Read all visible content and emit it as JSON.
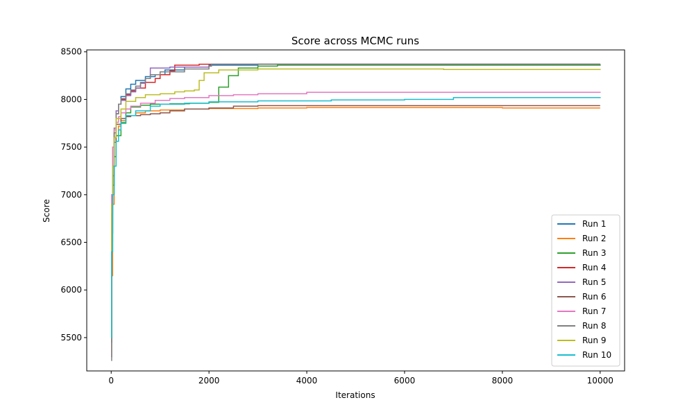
{
  "chart_data": {
    "type": "line",
    "title": "Score across MCMC runs",
    "xlabel": "Iterations",
    "ylabel": "Score",
    "xlim": [
      -500,
      10500
    ],
    "ylim": [
      5150,
      8520
    ],
    "x_ticks": [
      0,
      2000,
      4000,
      6000,
      8000,
      10000
    ],
    "y_ticks": [
      5500,
      6000,
      6500,
      7000,
      7500,
      8000,
      8500
    ],
    "grid": false,
    "legend_position": "lower-right",
    "series": [
      {
        "name": "Run 1",
        "color": "#1f77b4",
        "x": [
          0,
          10,
          30,
          60,
          100,
          150,
          200,
          300,
          400,
          500,
          700,
          900,
          1100,
          1500,
          2000,
          3000,
          5000,
          10000
        ],
        "y": [
          5450,
          6600,
          7200,
          7600,
          7850,
          7950,
          8030,
          8110,
          8160,
          8200,
          8240,
          8260,
          8310,
          8340,
          8360,
          8370,
          8370,
          8370
        ]
      },
      {
        "name": "Run 2",
        "color": "#ff7f0e",
        "x": [
          0,
          10,
          30,
          60,
          100,
          150,
          200,
          300,
          500,
          700,
          1000,
          1500,
          2000,
          3000,
          4000,
          6000,
          8000,
          10000
        ],
        "y": [
          5700,
          6150,
          6900,
          7400,
          7620,
          7720,
          7780,
          7830,
          7860,
          7880,
          7890,
          7900,
          7905,
          7910,
          7915,
          7915,
          7910,
          7910
        ]
      },
      {
        "name": "Run 3",
        "color": "#2ca02c",
        "x": [
          0,
          10,
          30,
          60,
          100,
          200,
          300,
          400,
          600,
          800,
          1200,
          1600,
          2000,
          2200,
          2400,
          2600,
          3000,
          3400,
          10000
        ],
        "y": [
          5500,
          6500,
          7100,
          7400,
          7620,
          7750,
          7860,
          7920,
          7940,
          7950,
          7955,
          7960,
          7970,
          8130,
          8250,
          8330,
          8350,
          8360,
          8370
        ]
      },
      {
        "name": "Run 4",
        "color": "#d62728",
        "x": [
          0,
          10,
          30,
          60,
          100,
          150,
          200,
          300,
          400,
          500,
          700,
          900,
          1000,
          1200,
          1300,
          1800,
          2000,
          10000
        ],
        "y": [
          5500,
          6800,
          7300,
          7650,
          7850,
          7950,
          8000,
          8050,
          8090,
          8120,
          8180,
          8220,
          8260,
          8300,
          8360,
          8370,
          8370,
          8370
        ]
      },
      {
        "name": "Run 5",
        "color": "#9467bd",
        "x": [
          0,
          10,
          30,
          60,
          100,
          150,
          200,
          300,
          400,
          500,
          600,
          700,
          800,
          1200,
          1800,
          2000,
          2050,
          10000
        ],
        "y": [
          5500,
          6700,
          7300,
          7700,
          7880,
          7950,
          7990,
          8040,
          8080,
          8120,
          8170,
          8220,
          8330,
          8340,
          8340,
          8350,
          8370,
          8370
        ]
      },
      {
        "name": "Run 6",
        "color": "#8c564b",
        "x": [
          0,
          10,
          30,
          60,
          100,
          200,
          300,
          400,
          600,
          800,
          1000,
          1200,
          1500,
          2000,
          2500,
          3000,
          10000
        ],
        "y": [
          5300,
          6600,
          7200,
          7550,
          7740,
          7800,
          7820,
          7830,
          7840,
          7850,
          7860,
          7880,
          7900,
          7910,
          7930,
          7935,
          7935
        ]
      },
      {
        "name": "Run 7",
        "color": "#e377c2",
        "x": [
          0,
          10,
          30,
          60,
          100,
          150,
          200,
          300,
          400,
          600,
          900,
          1200,
          1500,
          2000,
          2500,
          3000,
          4000,
          10000
        ],
        "y": [
          5700,
          7000,
          7500,
          7680,
          7760,
          7820,
          7860,
          7900,
          7930,
          7960,
          7990,
          8010,
          8020,
          8040,
          8050,
          8060,
          8075,
          8070
        ]
      },
      {
        "name": "Run 8",
        "color": "#7f7f7f",
        "x": [
          0,
          10,
          30,
          60,
          100,
          150,
          200,
          300,
          400,
          500,
          600,
          700,
          800,
          1000,
          1500,
          2000,
          2050,
          10000
        ],
        "y": [
          5260,
          6400,
          7200,
          7650,
          7850,
          7950,
          8010,
          8060,
          8100,
          8140,
          8180,
          8220,
          8260,
          8290,
          8320,
          8350,
          8370,
          8370
        ]
      },
      {
        "name": "Run 9",
        "color": "#bcbd22",
        "x": [
          0,
          10,
          30,
          60,
          100,
          200,
          300,
          500,
          700,
          1000,
          1300,
          1500,
          1700,
          1800,
          1900,
          2200,
          3000,
          6600,
          6800,
          10000
        ],
        "y": [
          5500,
          6900,
          7300,
          7600,
          7800,
          7900,
          7980,
          8020,
          8050,
          8060,
          8080,
          8090,
          8100,
          8200,
          8280,
          8310,
          8320,
          8320,
          8315,
          8320
        ]
      },
      {
        "name": "Run 10",
        "color": "#17becf",
        "x": [
          0,
          10,
          30,
          60,
          100,
          150,
          200,
          300,
          500,
          800,
          1000,
          1500,
          2000,
          3000,
          4500,
          6000,
          7000,
          10000
        ],
        "y": [
          5500,
          6400,
          7000,
          7300,
          7560,
          7680,
          7760,
          7830,
          7880,
          7930,
          7950,
          7960,
          7975,
          7985,
          7995,
          8000,
          8020,
          8025
        ]
      }
    ]
  }
}
